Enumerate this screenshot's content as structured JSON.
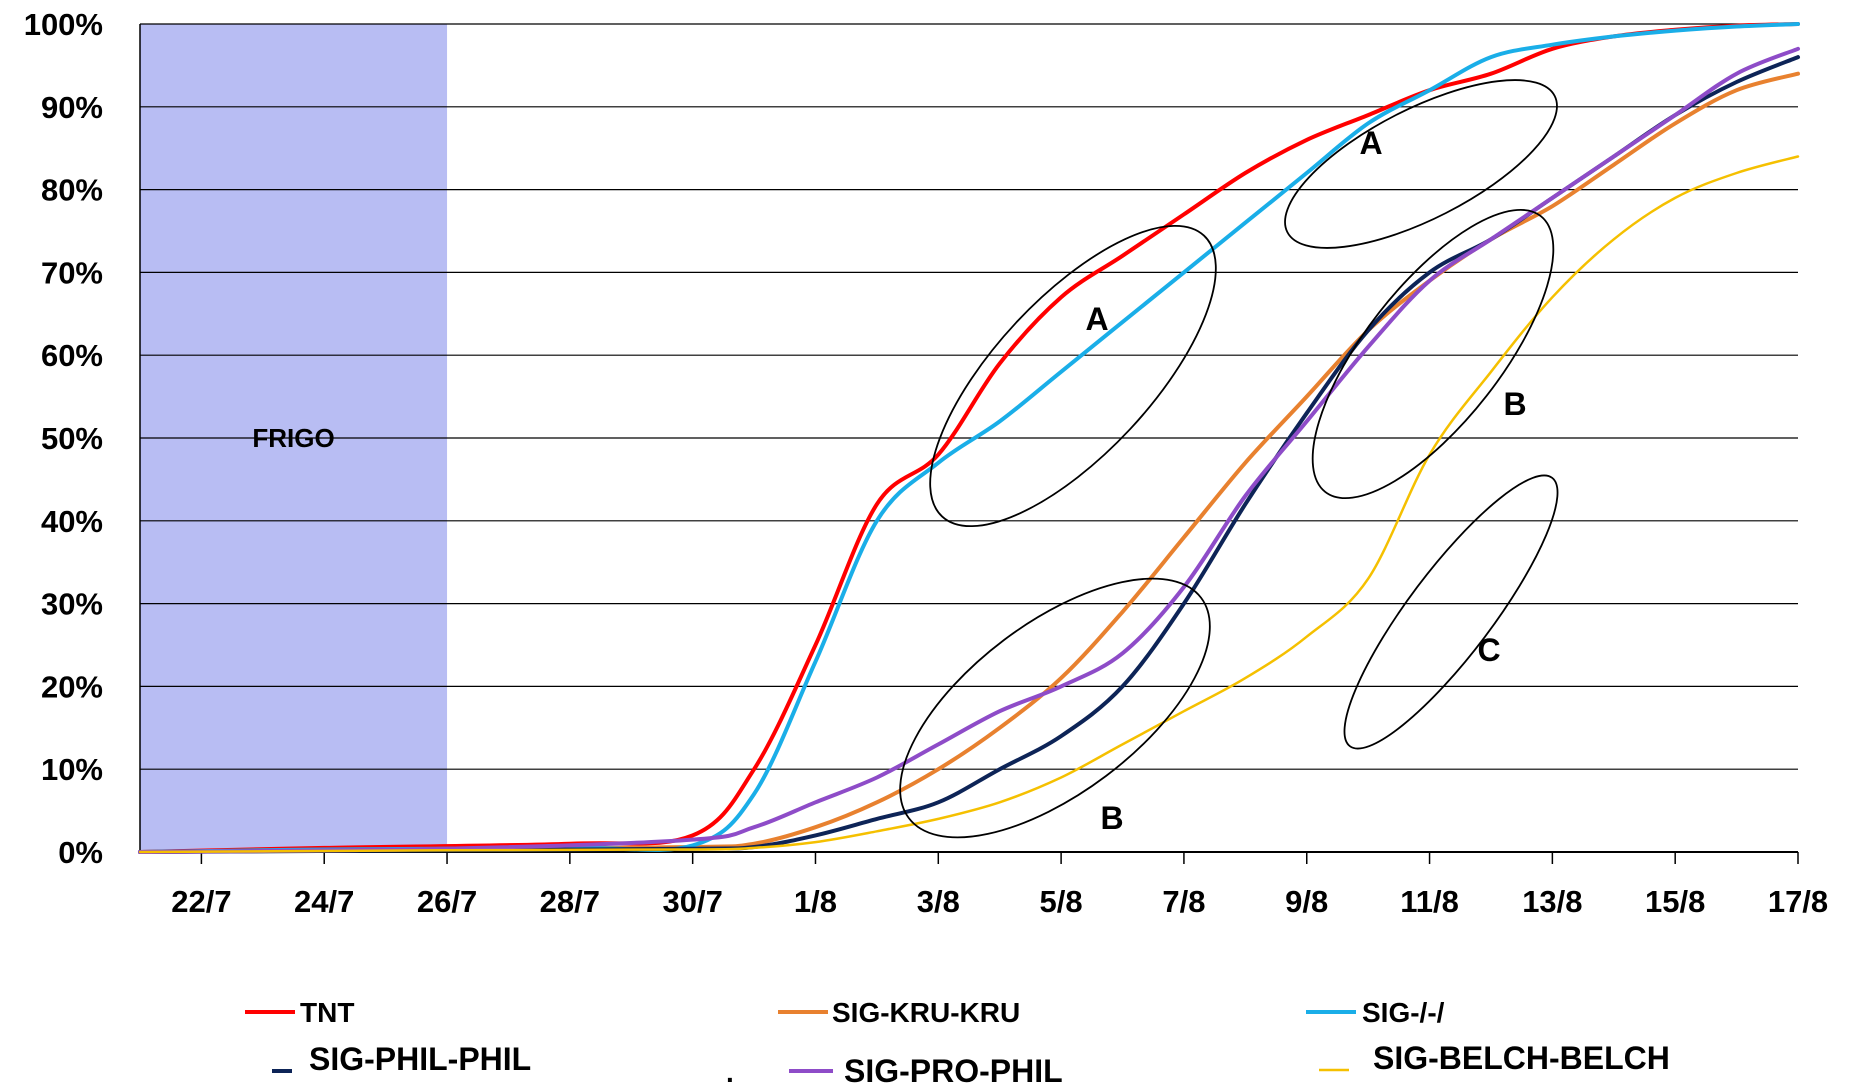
{
  "chart_data": {
    "type": "line",
    "xlabel": "",
    "ylabel": "",
    "x_tick_labels": [
      "22/7",
      "24/7",
      "26/7",
      "28/7",
      "30/7",
      "1/8",
      "3/8",
      "5/8",
      "7/8",
      "9/8",
      "11/8",
      "13/8",
      "15/8",
      "17/8"
    ],
    "x_domain": [
      "21/7",
      "17/8"
    ],
    "y_tick_labels": [
      "0%",
      "10%",
      "20%",
      "30%",
      "40%",
      "50%",
      "60%",
      "70%",
      "80%",
      "90%",
      "100%"
    ],
    "ylim": [
      0,
      100
    ],
    "grid": "horizontal",
    "legend_position": "bottom",
    "shaded_region": {
      "label": "FRIGO",
      "from": "21/7",
      "to": "26/7",
      "color": "#b8bdf3"
    },
    "annotations": [
      {
        "text": "A",
        "x": "5/8",
        "y": 65
      },
      {
        "text": "A",
        "x": "10/8",
        "y": 86
      },
      {
        "text": "B",
        "x": "12/8",
        "y": 54
      },
      {
        "text": "B",
        "x": "6/8",
        "y": 4
      },
      {
        "text": "C",
        "x": "12/8",
        "y": 25
      }
    ],
    "series": [
      {
        "name": "TNT",
        "color": "#ff0000",
        "x": [
          "21/7",
          "24/7",
          "28/7",
          "30/7",
          "31/7",
          "1/8",
          "2/8",
          "3/8",
          "4/8",
          "5/8",
          "6/8",
          "7/8",
          "8/8",
          "9/8",
          "10/8",
          "11/8",
          "12/8",
          "13/8",
          "14/8",
          "15/8",
          "16/8",
          "17/8"
        ],
        "y": [
          0,
          0.5,
          1,
          2,
          10,
          25,
          42,
          48,
          59,
          67,
          72,
          77,
          82,
          86,
          89,
          92,
          94,
          97,
          98.5,
          99.3,
          99.8,
          100
        ]
      },
      {
        "name": "SIG-KRU-KRU",
        "color": "#e8812f",
        "x": [
          "21/7",
          "26/7",
          "30/7",
          "31/7",
          "1/8",
          "2/8",
          "3/8",
          "4/8",
          "5/8",
          "6/8",
          "7/8",
          "8/8",
          "9/8",
          "10/8",
          "11/8",
          "12/8",
          "13/8",
          "14/8",
          "15/8",
          "16/8",
          "17/8"
        ],
        "y": [
          0,
          0.3,
          0.6,
          1,
          3,
          6,
          10,
          15,
          21,
          29,
          38,
          47,
          55,
          63,
          69,
          74,
          78,
          83,
          88,
          92,
          94
        ]
      },
      {
        "name": "SIG-/-/",
        "color": "#1aaee8",
        "x": [
          "21/7",
          "24/7",
          "28/7",
          "30/7",
          "31/7",
          "1/8",
          "2/8",
          "3/8",
          "4/8",
          "5/8",
          "6/8",
          "7/8",
          "8/8",
          "9/8",
          "10/8",
          "11/8",
          "12/8",
          "13/8",
          "14/8",
          "15/8",
          "16/8",
          "17/8"
        ],
        "y": [
          0,
          0.3,
          0.5,
          0.8,
          7,
          23,
          40,
          47,
          52,
          58,
          64,
          70,
          76,
          82,
          88,
          92,
          96,
          97.5,
          98.5,
          99.2,
          99.7,
          100
        ]
      },
      {
        "name": "SIG-PHIL-PHIL",
        "color": "#0d2457",
        "x": [
          "21/7",
          "26/7",
          "30/7",
          "31/7",
          "1/8",
          "2/8",
          "3/8",
          "4/8",
          "5/8",
          "6/8",
          "7/8",
          "8/8",
          "9/8",
          "10/8",
          "11/8",
          "12/8",
          "13/8",
          "14/8",
          "15/8",
          "16/8",
          "17/8"
        ],
        "y": [
          0,
          0.2,
          0.4,
          0.6,
          2,
          4,
          6,
          10,
          14,
          20,
          30,
          42,
          53,
          63,
          70,
          74,
          79,
          84,
          89,
          93,
          96
        ]
      },
      {
        "name": "SIG-PRO-PHIL",
        "color": "#8e4cc8",
        "x": [
          "21/7",
          "26/7",
          "30/7",
          "31/7",
          "1/8",
          "2/8",
          "3/8",
          "4/8",
          "5/8",
          "6/8",
          "7/8",
          "8/8",
          "9/8",
          "10/8",
          "11/8",
          "12/8",
          "13/8",
          "14/8",
          "15/8",
          "16/8",
          "17/8"
        ],
        "y": [
          0,
          0.4,
          1.5,
          3,
          6,
          9,
          13,
          17,
          20,
          24,
          32,
          43,
          52,
          61,
          69,
          74,
          79,
          84,
          89,
          94,
          97
        ]
      },
      {
        "name": "SIG-BELCH-BELCH",
        "color": "#f5c000",
        "x": [
          "21/7",
          "26/7",
          "30/7",
          "31/7",
          "1/8",
          "2/8",
          "3/8",
          "4/8",
          "5/8",
          "6/8",
          "7/8",
          "8/8",
          "9/8",
          "10/8",
          "11/8",
          "12/8",
          "13/8",
          "14/8",
          "15/8",
          "16/8",
          "17/8"
        ],
        "y": [
          0,
          0.2,
          0.3,
          0.5,
          1.2,
          2.5,
          4,
          6,
          9,
          13,
          17,
          21,
          26,
          33,
          48,
          58,
          67,
          74,
          79,
          82,
          84
        ]
      }
    ]
  },
  "legend_extra": "."
}
